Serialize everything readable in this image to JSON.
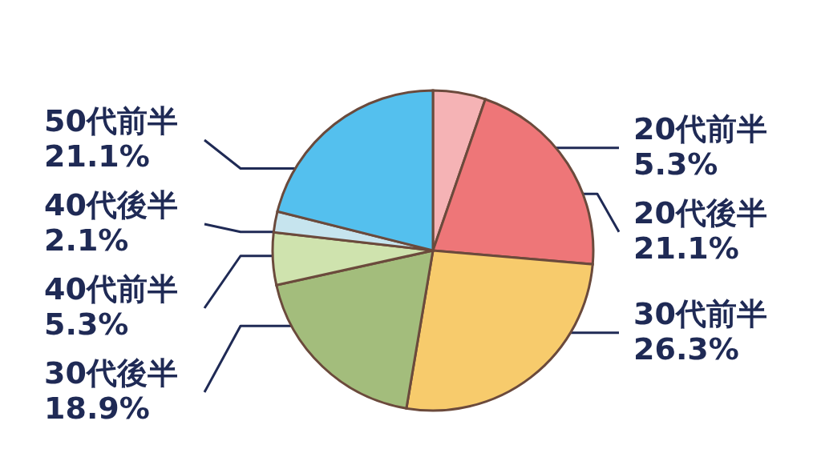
{
  "chart_data": {
    "type": "pie",
    "categories": [
      "20代前半",
      "20代後半",
      "30代前半",
      "30代後半",
      "40代前半",
      "40代後半",
      "50代前半"
    ],
    "values": [
      5.3,
      21.1,
      26.3,
      18.9,
      5.3,
      2.1,
      21.1
    ],
    "value_labels": [
      "5.3%",
      "21.1%",
      "26.3%",
      "18.9%",
      "5.3%",
      "2.1%",
      "21.1%"
    ],
    "colors": [
      "#f5b3b5",
      "#ee7678",
      "#f7cb6c",
      "#a3bd7c",
      "#cfe3ae",
      "#c6e4ee",
      "#54c0ee"
    ]
  }
}
